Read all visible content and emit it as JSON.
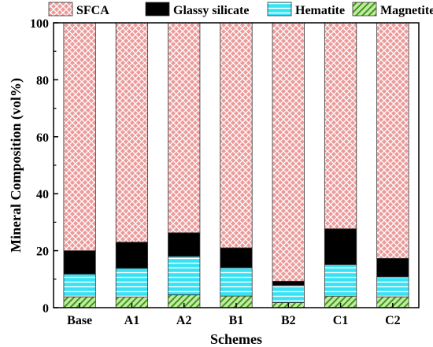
{
  "chart_data": {
    "type": "bar",
    "stacked": true,
    "xlabel": "Schemes",
    "ylabel": "Mineral Composition (vol%)",
    "ylim": [
      0,
      100
    ],
    "yticks": [
      0,
      20,
      40,
      60,
      80,
      100
    ],
    "grid": false,
    "legend_position": "top",
    "categories": [
      "Base",
      "A1",
      "A2",
      "B1",
      "B2",
      "C1",
      "C2"
    ],
    "series": [
      {
        "name": "Magnetite",
        "color": "#44aa11",
        "pattern": "diagonal-hatch",
        "values": [
          3.8,
          3.7,
          4.5,
          4.1,
          1.8,
          4.0,
          3.8
        ]
      },
      {
        "name": "Hematite",
        "color": "#22d3ee",
        "pattern": "horizontal-lines",
        "values": [
          8.0,
          10.1,
          13.5,
          9.9,
          6.0,
          11.1,
          7.0
        ]
      },
      {
        "name": "Glassy silicate",
        "color": "#6699dd",
        "pattern": "diagonal-hatch",
        "values": [
          8.2,
          9.2,
          8.3,
          7.0,
          1.5,
          12.6,
          6.5
        ]
      },
      {
        "name": "SFCA",
        "color": "#dd6666",
        "pattern": "crosshatch",
        "values": [
          80.0,
          77.0,
          73.7,
          79.0,
          90.7,
          72.3,
          82.7
        ]
      }
    ],
    "legend_order": [
      "SFCA",
      "Glassy silicate",
      "Hematite",
      "Magnetite"
    ]
  }
}
